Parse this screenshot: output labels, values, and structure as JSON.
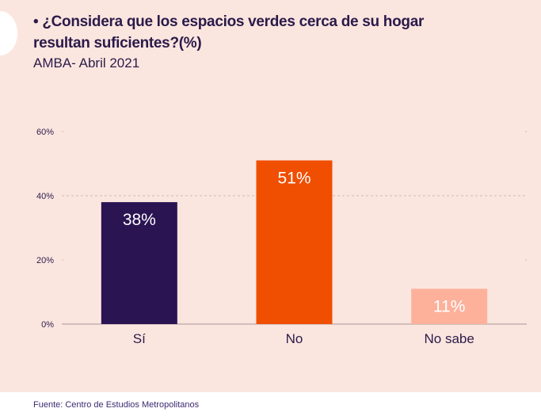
{
  "title": "• ¿Considera que los espacios verdes cerca de su hogar resultan suficientes?(%)",
  "subtitle": "AMBA- Abril 2021",
  "source": "Fuente: Centro de Estudios Metropolitanos",
  "chart_data": {
    "type": "bar",
    "categories": [
      "Sí",
      "No",
      "No sabe"
    ],
    "values": [
      38,
      51,
      11
    ],
    "data_labels": [
      "38%",
      "51%",
      "11%"
    ],
    "colors": [
      "#2a1452",
      "#f04e00",
      "#fdb19b"
    ],
    "ylim": [
      0,
      60
    ],
    "yticks": [
      0,
      20,
      40,
      60
    ],
    "ytick_labels": [
      "0%",
      "20%",
      "40%",
      "60%"
    ],
    "grid": "dashed horizontal at 40%",
    "xlabel": "",
    "ylabel": ""
  }
}
